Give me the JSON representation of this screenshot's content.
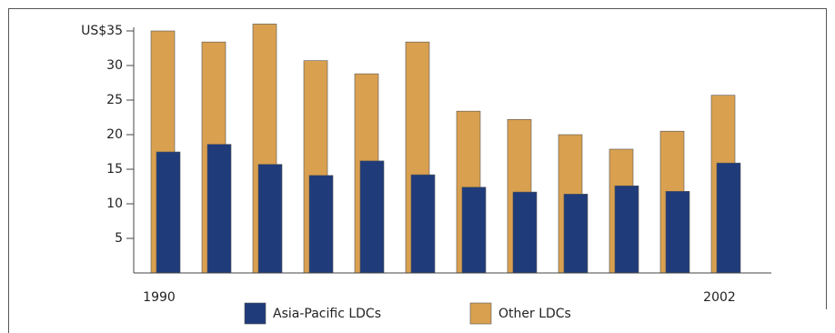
{
  "chart_data": {
    "type": "overlapping-bar",
    "categories": [
      "1990",
      null,
      null,
      null,
      null,
      null,
      null,
      null,
      null,
      null,
      null,
      "2002"
    ],
    "series": [
      {
        "name": "Other LDCs",
        "color": "#d9a050",
        "values": [
          35,
          33.4,
          36,
          30.7,
          28.8,
          33.4,
          23.4,
          22.2,
          20,
          17.9,
          20.5,
          25.7
        ]
      },
      {
        "name": "Asia-Pacific LDCs",
        "color": "#1f3b7a",
        "values": [
          17.5,
          18.6,
          15.7,
          14.1,
          16.2,
          14.2,
          12.4,
          11.7,
          11.4,
          12.6,
          11.8,
          15.9
        ]
      }
    ],
    "ylim": [
      0,
      35
    ],
    "yticks": [
      5,
      10,
      15,
      20,
      25,
      30,
      {
        "value": 35,
        "label": "US$35"
      }
    ]
  }
}
